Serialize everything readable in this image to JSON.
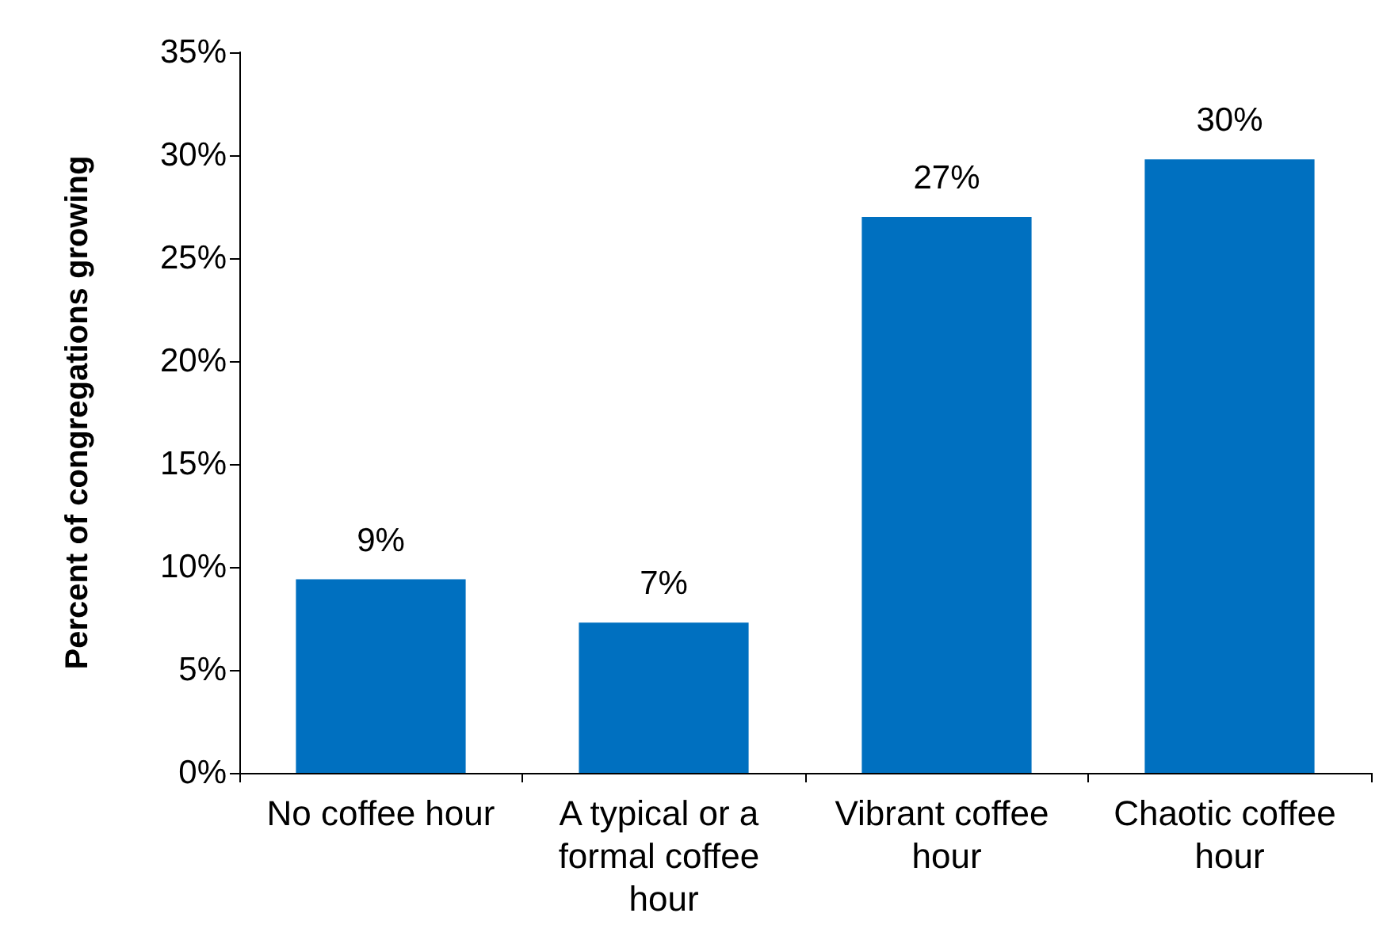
{
  "chart_data": {
    "type": "bar",
    "ylabel": "Percent of congregations growing",
    "categories": [
      "No coffee hour",
      "A typical or a formal coffee hour",
      "Vibrant coffee hour",
      "Chaotic coffee hour"
    ],
    "values": [
      9.4,
      7.3,
      27,
      29.8
    ],
    "value_labels": [
      "9%",
      "7%",
      "27%",
      "30%"
    ],
    "color": "#0070c0",
    "ylim": [
      0,
      35
    ],
    "yticks": [
      {
        "value": 0,
        "label": "0%"
      },
      {
        "value": 5,
        "label": "5%"
      },
      {
        "value": 10,
        "label": "10%"
      },
      {
        "value": 15,
        "label": "15%"
      },
      {
        "value": 20,
        "label": "20%"
      },
      {
        "value": 25,
        "label": "25%"
      },
      {
        "value": 30,
        "label": "30%"
      },
      {
        "value": 35,
        "label": "35%"
      }
    ],
    "grid": false
  }
}
